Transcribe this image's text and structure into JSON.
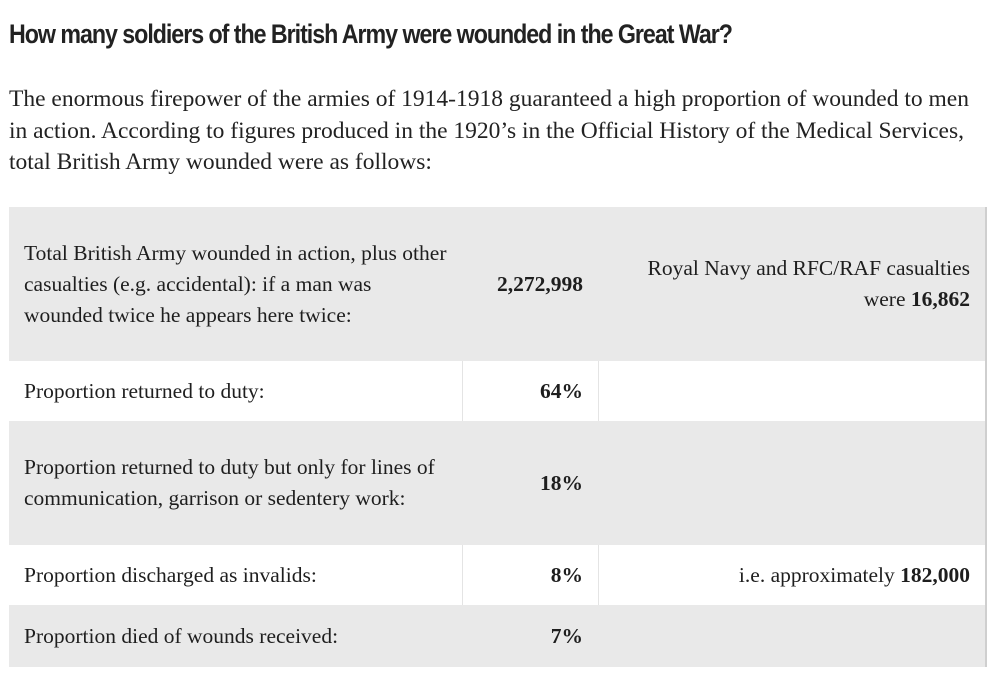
{
  "title": "How many soldiers of the British Army were wounded in the Great War?",
  "intro": "The enormous firepower of the armies of 1914-1918 guaranteed a high proportion of wounded to men in action. According to figures produced in the 1920’s in the Official History of the Medical Services, total British Army wounded were as follows:",
  "table": {
    "rows": [
      {
        "label": "Total British Army wounded in action, plus other casualties (e.g. accidental): if a man was wounded twice he appears here twice:",
        "value": "2,272,998",
        "note_prefix": "Royal Navy and RFC/RAF casualties were ",
        "note_bold": "16,862"
      },
      {
        "label": "Proportion returned to duty:",
        "value": "64%",
        "note_prefix": "",
        "note_bold": ""
      },
      {
        "label": "Proportion returned to duty but only for lines of communication, garrison or sedentery work:",
        "value": "18%",
        "note_prefix": "",
        "note_bold": ""
      },
      {
        "label": "Proportion discharged as invalids:",
        "value": "8%",
        "note_prefix": "i.e. approximately ",
        "note_bold": "182,000"
      },
      {
        "label": "Proportion died of wounds received:",
        "value": "7%",
        "note_prefix": "",
        "note_bold": ""
      }
    ]
  }
}
